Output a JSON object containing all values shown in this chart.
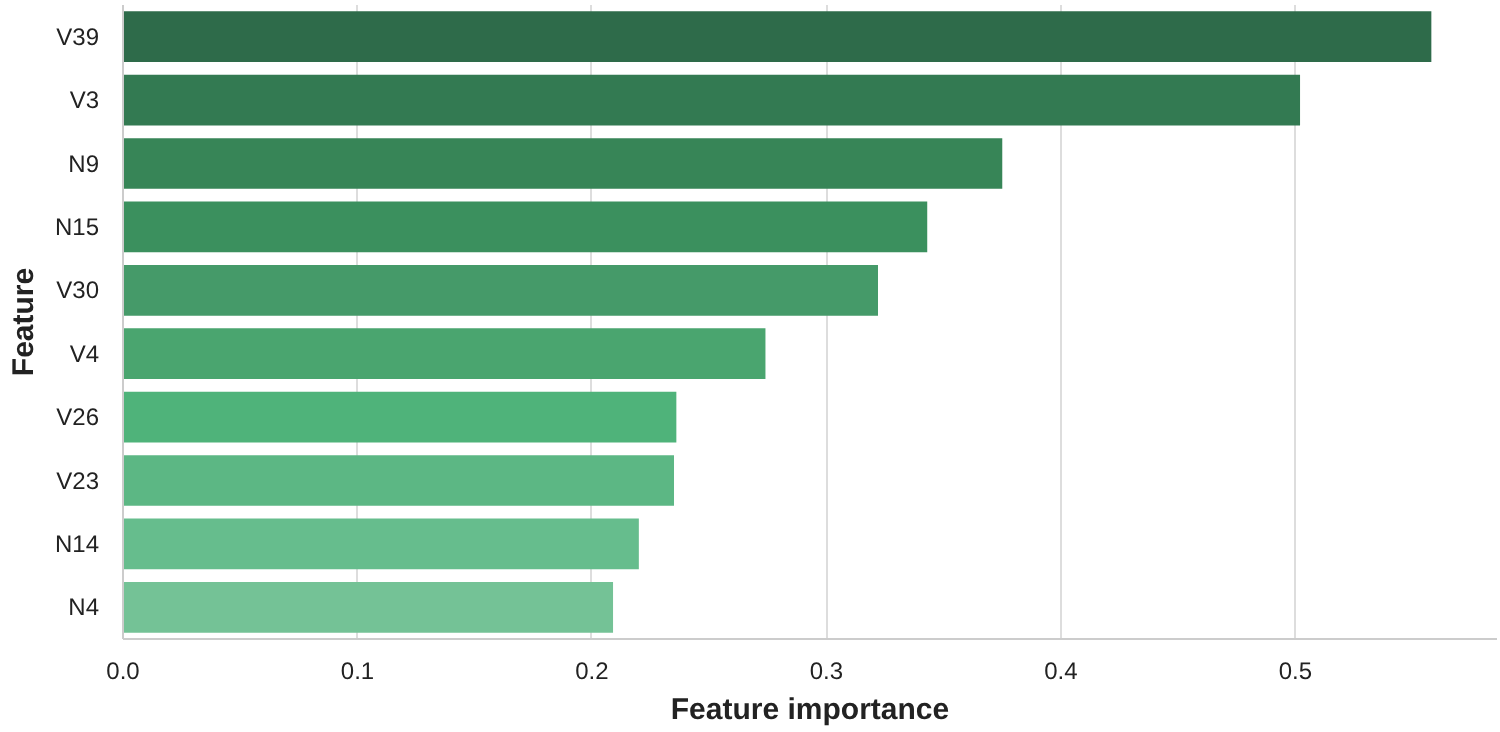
{
  "chart_data": {
    "type": "bar",
    "orientation": "horizontal",
    "xlabel": "Feature importance",
    "ylabel": "Feature",
    "categories": [
      "V39",
      "V3",
      "N9",
      "N15",
      "V30",
      "V4",
      "V26",
      "V23",
      "N14",
      "N4"
    ],
    "values": [
      0.558,
      0.502,
      0.375,
      0.343,
      0.322,
      0.274,
      0.236,
      0.235,
      0.22,
      0.209
    ],
    "colors": [
      "#2e6b4a",
      "#337a52",
      "#378557",
      "#3b905e",
      "#459a69",
      "#4aa56f",
      "#4fb37a",
      "#5cb784",
      "#66bd8d",
      "#74c296"
    ],
    "xlim": [
      0,
      0.586
    ],
    "xticks": [
      {
        "value": 0,
        "label": "0.0"
      },
      0.1,
      0.2,
      0.3,
      0.4,
      0.5
    ],
    "grid": "x"
  }
}
